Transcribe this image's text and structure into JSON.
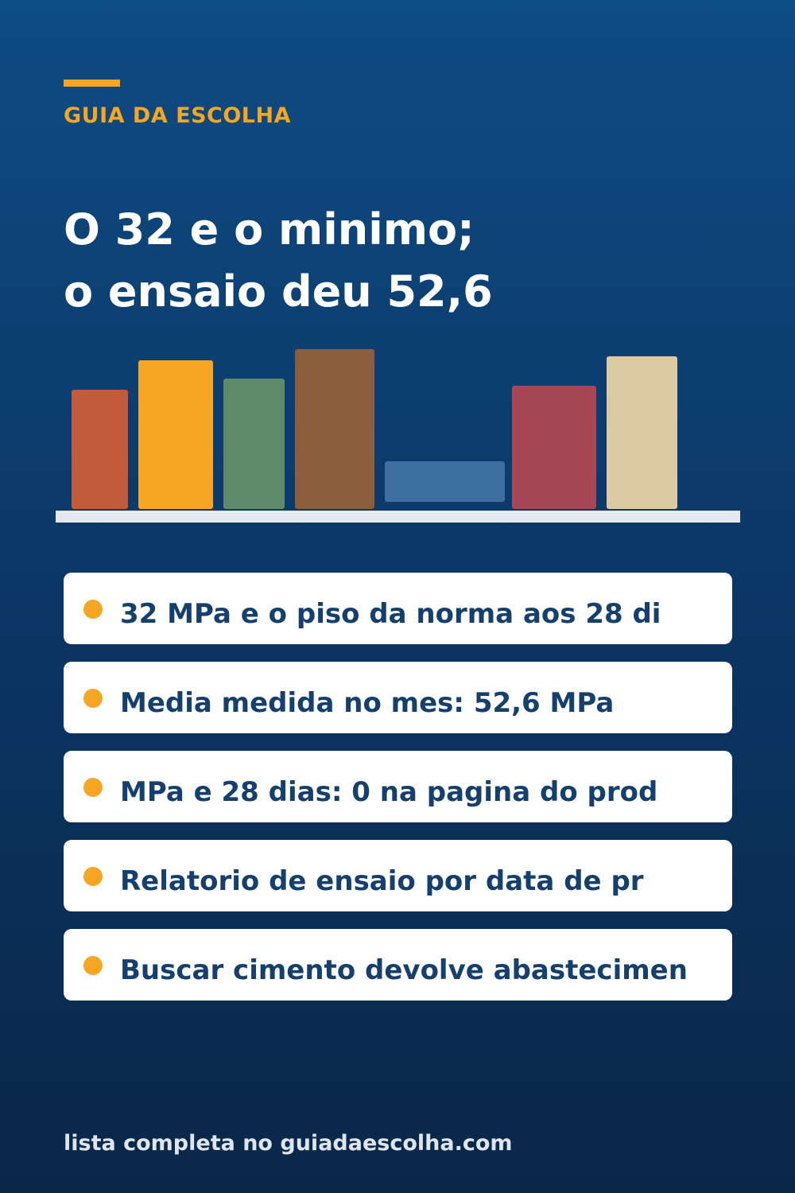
{
  "brand": "GUIA DA ESCOLHA",
  "headline": [
    "O 32 e o minimo;",
    "o ensaio deu 52,6"
  ],
  "colors": {
    "accent": "#f5a623",
    "card_text": "#15406e",
    "books": [
      "#c15b3b",
      "#f5a623",
      "#5e8a6a",
      "#8a5e3c",
      "#3d6fa1",
      "#a64758",
      "#ddc9a3"
    ]
  },
  "items": [
    "32 MPa e o piso da norma aos 28 di",
    "Media medida no mes: 52,6 MPa",
    "MPa e 28 dias: 0 na pagina do prod",
    "Relatorio de ensaio por data de pr",
    "Buscar cimento devolve abastecimen"
  ],
  "footer": "lista completa no guiadaescolha.com"
}
